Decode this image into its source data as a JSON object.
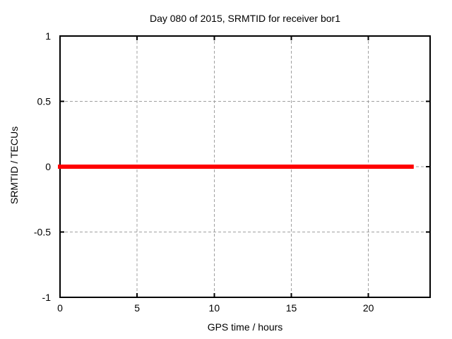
{
  "window": {
    "background": "#ffffff"
  },
  "chart_data": {
    "type": "line",
    "title": "Day 080 of 2015, SRMTID for receiver bor1",
    "xlabel": "GPS time / hours",
    "ylabel": "SRMTID / TECUs",
    "xlim": [
      0,
      24
    ],
    "ylim": [
      -1,
      1
    ],
    "xticks": [
      0,
      5,
      10,
      15,
      20
    ],
    "yticks": [
      -1,
      -0.5,
      0,
      0.5,
      1
    ],
    "grid": true,
    "grid_color": "#a0a0a0",
    "axis_color": "#000000",
    "legend": "none",
    "series": [
      {
        "name": "SRMTID",
        "color": "#ff0000",
        "line_width": 6,
        "x": [
          0,
          22.8
        ],
        "y": [
          0,
          0
        ]
      }
    ]
  }
}
